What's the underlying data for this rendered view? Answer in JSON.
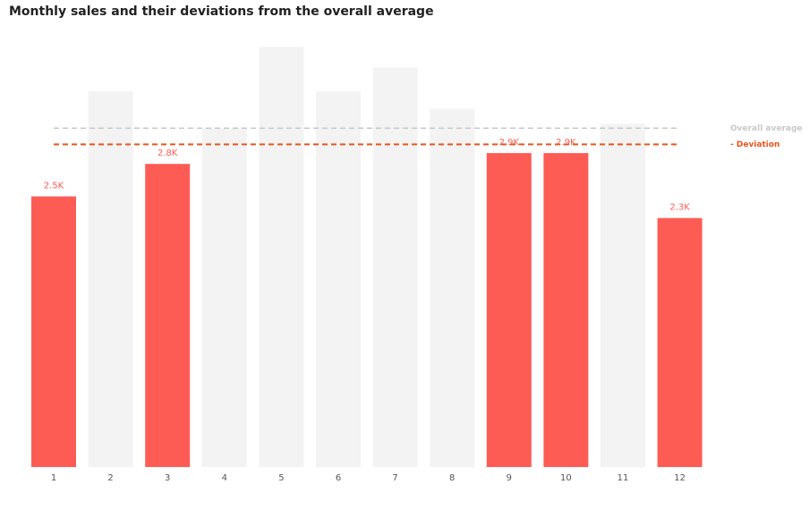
{
  "chart_data": {
    "type": "bar",
    "title": "Monthly sales and their deviations from the overall average",
    "categories": [
      "1",
      "2",
      "3",
      "4",
      "5",
      "6",
      "7",
      "8",
      "9",
      "10",
      "11",
      "12"
    ],
    "values": [
      2500,
      3470,
      2800,
      3130,
      3880,
      3470,
      3690,
      3310,
      2900,
      2900,
      3170,
      2300
    ],
    "value_labels": [
      "2.5K",
      null,
      "2.8K",
      null,
      null,
      null,
      null,
      null,
      "2.9K",
      "2.9K",
      null,
      "2.3K"
    ],
    "colors": [
      "#fd5c55",
      "#f3f3f3",
      "#fd5c55",
      "#f3f3f3",
      "#f3f3f3",
      "#f3f3f3",
      "#f3f3f3",
      "#f3f3f3",
      "#fd5c55",
      "#fd5c55",
      "#f3f3f3",
      "#fd5c55"
    ],
    "ylim": [
      0,
      4000
    ],
    "reference_lines": [
      {
        "name": "Overall average",
        "value": 3130,
        "color": "#c8c8c8"
      },
      {
        "name": "- Deviation",
        "value": 2980,
        "color": "#e8551f"
      }
    ]
  }
}
